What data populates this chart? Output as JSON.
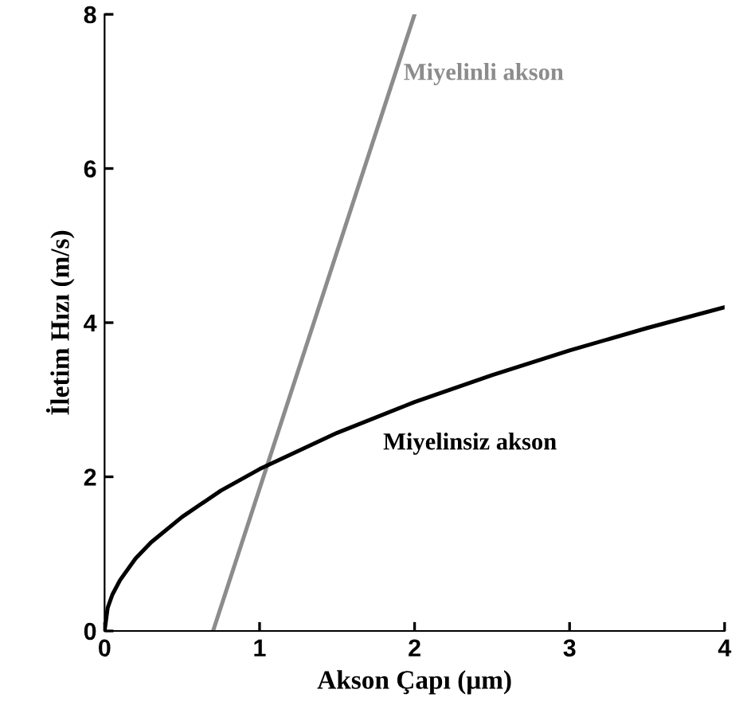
{
  "chart_data": {
    "type": "line",
    "xlabel": "Akson Çapı (μm)",
    "ylabel": "İletim Hızı (m/s)",
    "xlim": [
      0,
      4
    ],
    "ylim": [
      0,
      8
    ],
    "xticks": [
      0,
      1,
      2,
      3,
      4
    ],
    "yticks": [
      0,
      2,
      4,
      6,
      8
    ],
    "grid": false,
    "legend": false,
    "marker": "none",
    "line_style": "solid",
    "series": [
      {
        "name": "Miyelinli akson",
        "color": "#8c8c8c",
        "x": [
          0.7,
          2.0
        ],
        "values": [
          0,
          8
        ]
      },
      {
        "name": "Miyelinsiz akson",
        "color": "#000000",
        "x": [
          0,
          0.02,
          0.05,
          0.1,
          0.2,
          0.3,
          0.5,
          0.75,
          1,
          1.5,
          2,
          2.5,
          3,
          3.5,
          4
        ],
        "values": [
          0,
          0.3,
          0.47,
          0.66,
          0.94,
          1.15,
          1.48,
          1.82,
          2.1,
          2.57,
          2.97,
          3.32,
          3.64,
          3.93,
          4.2
        ]
      }
    ]
  }
}
